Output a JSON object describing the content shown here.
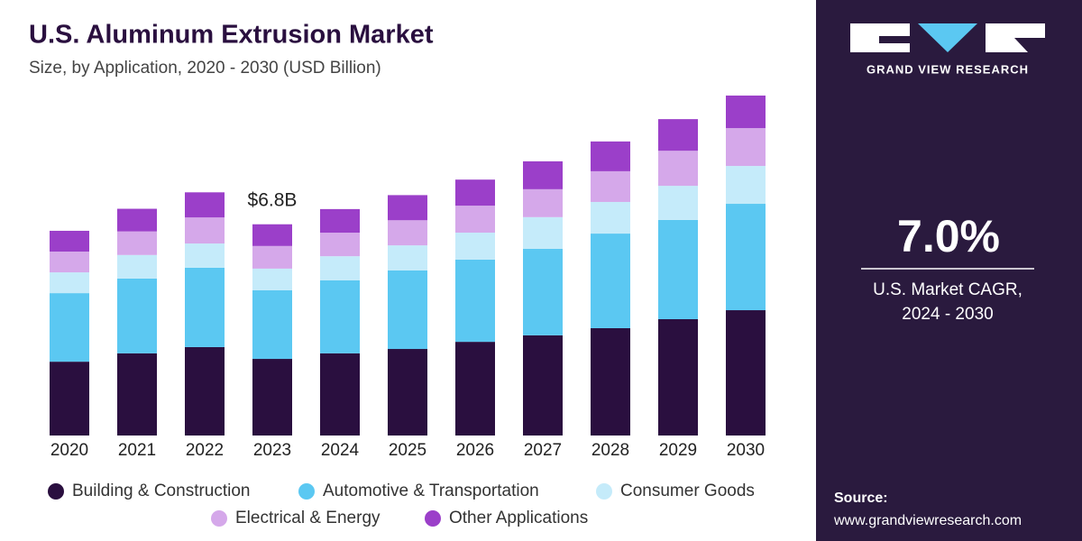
{
  "chart_data": {
    "type": "stacked-bar",
    "title": "U.S. Aluminum Extrusion Market",
    "subtitle": "Size, by Application, 2020 - 2030 (USD Billion)",
    "categories": [
      "2020",
      "2021",
      "2022",
      "2023",
      "2024",
      "2025",
      "2026",
      "2027",
      "2028",
      "2029",
      "2030"
    ],
    "series": [
      {
        "name": "Building & Construction",
        "color": "#2a0f3f",
        "values": [
          2.38,
          2.65,
          2.85,
          2.47,
          2.65,
          2.79,
          3.02,
          3.23,
          3.46,
          3.75,
          4.04
        ]
      },
      {
        "name": "Automotive & Transportation",
        "color": "#5bc8f2",
        "values": [
          2.21,
          2.41,
          2.56,
          2.21,
          2.35,
          2.53,
          2.65,
          2.79,
          3.05,
          3.2,
          3.43
        ]
      },
      {
        "name": "Consumer Goods",
        "color": "#c5ebfa",
        "values": [
          0.67,
          0.76,
          0.78,
          0.7,
          0.78,
          0.81,
          0.87,
          1.02,
          1.02,
          1.1,
          1.22
        ]
      },
      {
        "name": "Electrical & Energy",
        "color": "#d5a8ea",
        "values": [
          0.67,
          0.76,
          0.84,
          0.73,
          0.76,
          0.81,
          0.87,
          0.9,
          0.99,
          1.13,
          1.22
        ]
      },
      {
        "name": "Other Applications",
        "color": "#9b3fc9",
        "values": [
          0.67,
          0.73,
          0.81,
          0.7,
          0.76,
          0.81,
          0.84,
          0.9,
          0.96,
          1.02,
          1.05
        ]
      }
    ],
    "annotations": [
      {
        "text": "$6.8B",
        "category": "2023"
      }
    ]
  },
  "sidebar": {
    "brand": "GRAND VIEW RESEARCH",
    "cagr": "7.0%",
    "cagr_caption": [
      "U.S. Market CAGR,",
      "2024 - 2030"
    ],
    "source_label": "Source:",
    "source_url": "www.grandviewresearch.com"
  }
}
